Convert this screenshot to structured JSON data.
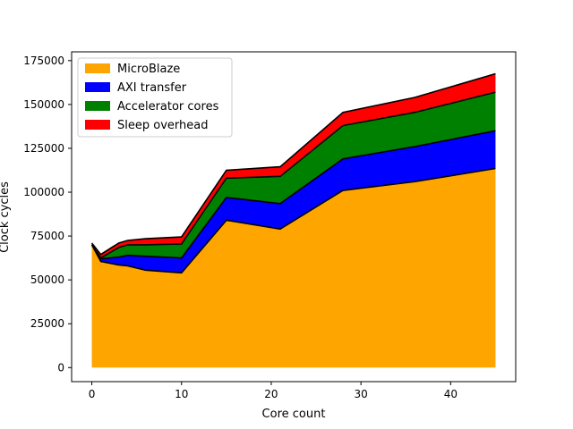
{
  "chart_data": {
    "type": "area",
    "stacked": true,
    "xlabel": "Core count",
    "ylabel": "Clock cycles",
    "xlim": [
      -2.25,
      47.25
    ],
    "ylim": [
      -8000,
      180000
    ],
    "xticks": [
      0,
      10,
      20,
      30,
      40
    ],
    "yticks": [
      0,
      25000,
      50000,
      75000,
      100000,
      125000,
      150000,
      175000
    ],
    "ytick_labels": [
      "0",
      "25000",
      "50000",
      "75000",
      "100000",
      "125000",
      "150000",
      "175000"
    ],
    "legend_position": "top-left",
    "grid": false,
    "x": [
      0,
      1,
      3,
      4,
      6,
      10,
      15,
      21,
      28,
      36,
      45
    ],
    "series": [
      {
        "name": "MicroBlaze",
        "color": "#ffa500",
        "values": [
          70000,
          60500,
          58500,
          58000,
          55500,
          54000,
          84000,
          79000,
          101000,
          106000,
          113500
        ]
      },
      {
        "name": "AXI transfer",
        "color": "#0000ff",
        "values": [
          0,
          1500,
          4500,
          6000,
          8000,
          8500,
          13000,
          14500,
          18000,
          20000,
          21500
        ]
      },
      {
        "name": "Accelerator cores",
        "color": "#008000",
        "values": [
          0,
          500,
          5500,
          6000,
          6500,
          8000,
          11000,
          15500,
          19000,
          19500,
          22000
        ]
      },
      {
        "name": "Sleep overhead",
        "color": "#ff0000",
        "values": [
          1000,
          2000,
          2500,
          2500,
          3500,
          4000,
          4500,
          5500,
          7500,
          8500,
          10500
        ]
      }
    ]
  }
}
